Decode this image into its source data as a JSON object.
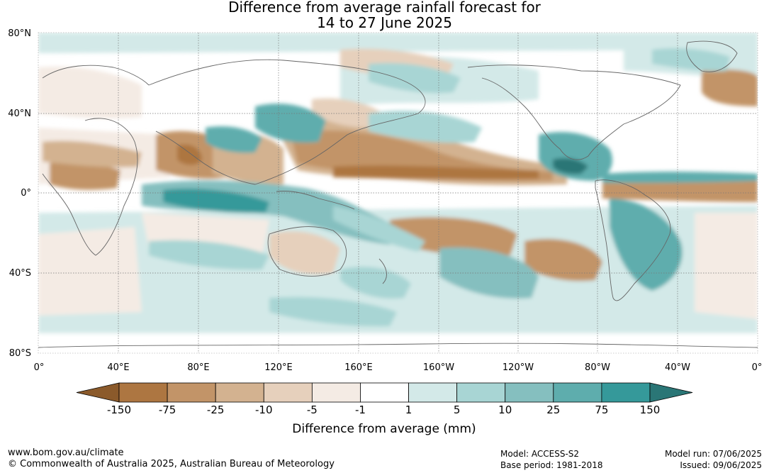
{
  "title": {
    "line1": "Difference from average rainfall forecast for",
    "line2": "14 to 27 June 2025"
  },
  "map": {
    "lat_labels": [
      "80°N",
      "40°N",
      "0°",
      "40°S",
      "80°S"
    ],
    "lon_labels": [
      "0°",
      "40°E",
      "80°E",
      "120°E",
      "160°E",
      "160°W",
      "120°W",
      "80°W",
      "40°W",
      "0°"
    ]
  },
  "legend": {
    "ticks": [
      "-150",
      "-75",
      "-25",
      "-10",
      "-5",
      "-1",
      "1",
      "5",
      "10",
      "25",
      "75",
      "150"
    ],
    "colors": [
      "#8b5a2b",
      "#ad7641",
      "#c29468",
      "#d3b290",
      "#e6d0bc",
      "#f4ebe4",
      "#ffffff",
      "#d3e9e8",
      "#a8d5d4",
      "#85bfbf",
      "#5eadad",
      "#35999a",
      "#2a7676"
    ],
    "label": "Difference from average (mm)"
  },
  "footer": {
    "url": "www.bom.gov.au/climate",
    "copyright": "© Commonwealth of Australia 2025, Australian Bureau of Meteorology",
    "model": "Model: ACCESS-S2",
    "base_period": "Base period: 1981-2018",
    "model_run": "Model run: 07/06/2025",
    "issued": "Issued: 09/06/2025"
  }
}
